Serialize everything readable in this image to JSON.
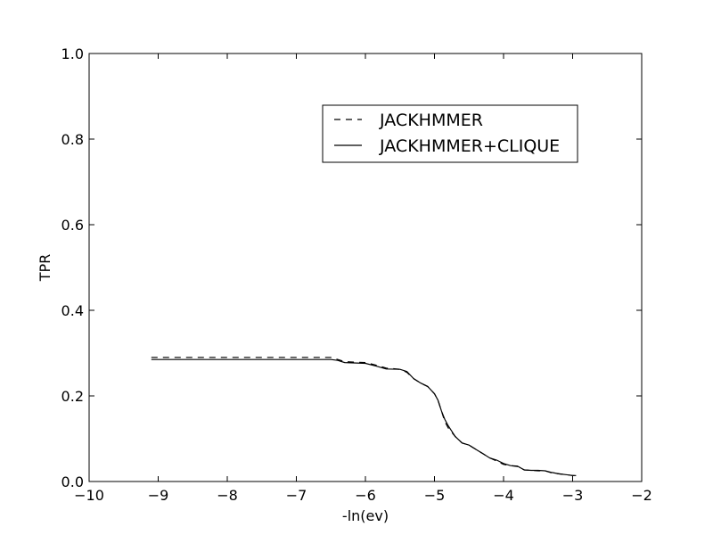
{
  "chart_data": {
    "type": "line",
    "title": "",
    "xlabel": "-ln(ev)",
    "ylabel": "TPR",
    "xlim": [
      -10,
      -2
    ],
    "ylim": [
      0.0,
      1.0
    ],
    "xticks": [
      -10,
      -9,
      -8,
      -7,
      -6,
      -5,
      -4,
      -3,
      -2
    ],
    "xtick_labels": [
      "−10",
      "−9",
      "−8",
      "−7",
      "−6",
      "−5",
      "−4",
      "−3",
      "−2"
    ],
    "yticks": [
      0.0,
      0.2,
      0.4,
      0.6,
      0.8,
      1.0
    ],
    "ytick_labels": [
      "0.0",
      "0.2",
      "0.4",
      "0.6",
      "0.8",
      "1.0"
    ],
    "grid": false,
    "legend_position": "upper-right",
    "series": [
      {
        "name": "JACKHMMER",
        "style": "dashed",
        "color": "#000000",
        "x": [
          -9.1,
          -6.5,
          -6.3,
          -6.0,
          -5.85,
          -5.7,
          -5.5,
          -5.4,
          -5.3,
          -5.2,
          -5.1,
          -5.0,
          -4.95,
          -4.9,
          -4.85,
          -4.8,
          -4.7,
          -4.6,
          -4.5,
          -4.4,
          -4.3,
          -4.2,
          -4.1,
          -4.0,
          -3.9,
          -3.8,
          -3.7,
          -3.6,
          -3.5,
          -3.4,
          -3.3,
          -3.2,
          -3.1,
          -3.0,
          -2.95
        ],
        "y": [
          0.29,
          0.29,
          0.28,
          0.278,
          0.272,
          0.265,
          0.262,
          0.255,
          0.24,
          0.23,
          0.222,
          0.205,
          0.19,
          0.165,
          0.14,
          0.125,
          0.105,
          0.09,
          0.085,
          0.075,
          0.065,
          0.055,
          0.048,
          0.04,
          0.037,
          0.035,
          0.027,
          0.026,
          0.025,
          0.025,
          0.02,
          0.018,
          0.016,
          0.014,
          0.014
        ]
      },
      {
        "name": "JACKHMMER+CLIQUE",
        "style": "solid",
        "color": "#000000",
        "x": [
          -9.1,
          -6.5,
          -6.4,
          -6.3,
          -6.0,
          -5.85,
          -5.7,
          -5.5,
          -5.4,
          -5.3,
          -5.2,
          -5.1,
          -5.0,
          -4.95,
          -4.9,
          -4.85,
          -4.8,
          -4.7,
          -4.6,
          -4.5,
          -4.4,
          -4.3,
          -4.2,
          -4.1,
          -4.0,
          -3.9,
          -3.8,
          -3.7,
          -3.6,
          -3.5,
          -3.4,
          -3.3,
          -3.2,
          -3.1,
          -3.0,
          -2.95
        ],
        "y": [
          0.285,
          0.285,
          0.283,
          0.278,
          0.276,
          0.27,
          0.263,
          0.262,
          0.257,
          0.24,
          0.23,
          0.222,
          0.205,
          0.19,
          0.165,
          0.145,
          0.13,
          0.105,
          0.09,
          0.085,
          0.075,
          0.065,
          0.055,
          0.05,
          0.042,
          0.037,
          0.036,
          0.027,
          0.026,
          0.026,
          0.025,
          0.021,
          0.018,
          0.016,
          0.014,
          0.014
        ]
      }
    ]
  }
}
